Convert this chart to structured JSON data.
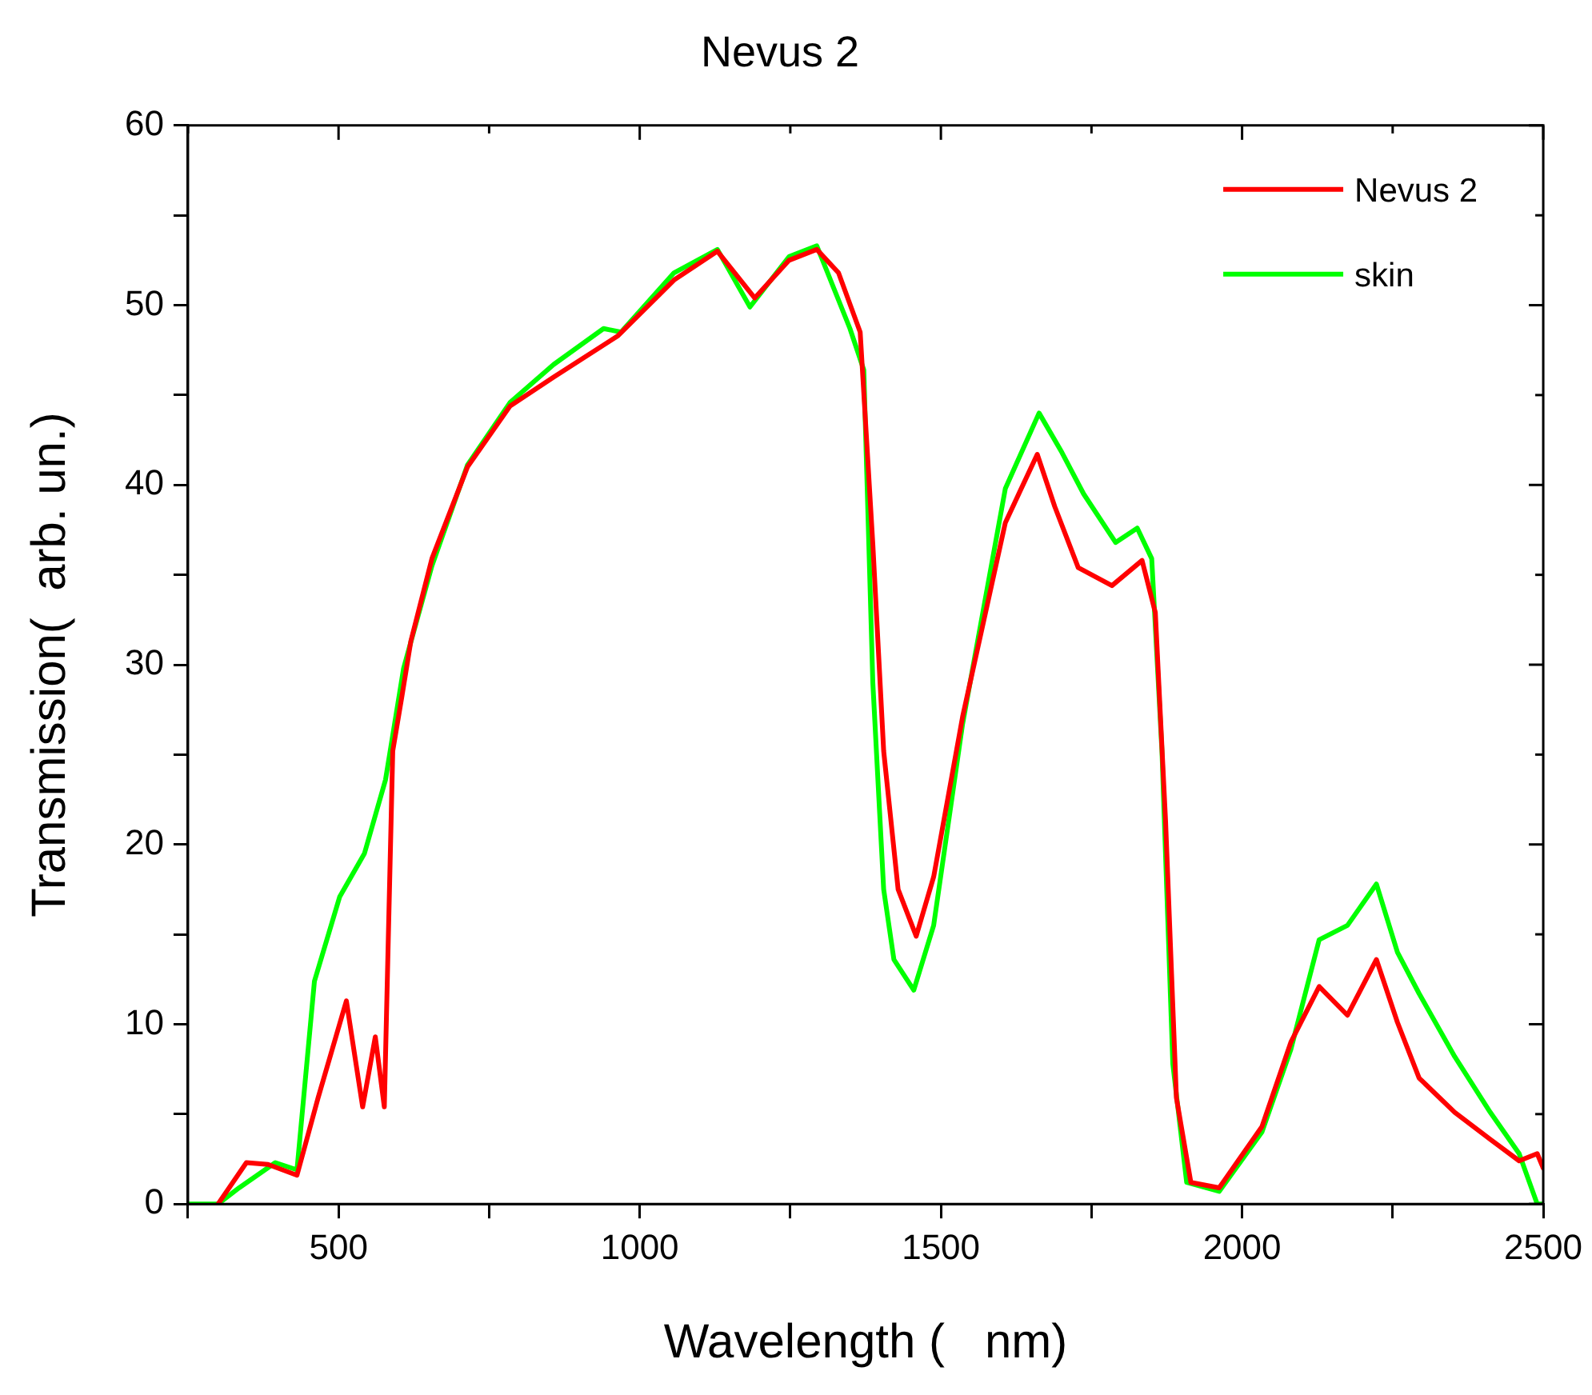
{
  "chart_data": {
    "type": "line",
    "title": "Nevus 2",
    "xlabel": "Wavelength (   nm)",
    "ylabel": "Transmission(  arb. un.)",
    "xlim": [
      250,
      2500
    ],
    "ylim": [
      0,
      60
    ],
    "xticks": [
      {
        "value": 250,
        "label": null
      },
      500,
      {
        "value": 750,
        "label": null
      },
      1000,
      {
        "value": 1250,
        "label": null
      },
      1500,
      {
        "value": 1750,
        "label": null
      },
      2000,
      {
        "value": 2250,
        "label": null
      },
      2500
    ],
    "yticks": [
      0,
      {
        "value": 5,
        "label": null
      },
      10,
      {
        "value": 15,
        "label": null
      },
      20,
      {
        "value": 25,
        "label": null
      },
      30,
      {
        "value": 35,
        "label": null
      },
      40,
      {
        "value": 45,
        "label": null
      },
      50,
      {
        "value": 55,
        "label": null
      },
      60
    ],
    "grid": false,
    "legend": "top right",
    "marker": "none",
    "line_style": "solid",
    "series": [
      {
        "name": "Nevus 2",
        "color": "#ff0000",
        "x": [
          300,
          347,
          383,
          431,
          466,
          513,
          540,
          561,
          576,
          590,
          605,
          620,
          655,
          714,
          785,
          857,
          964,
          1057,
          1129,
          1191,
          1248,
          1294,
          1330,
          1366,
          1387,
          1405,
          1429,
          1459,
          1488,
          1536,
          1607,
          1660,
          1689,
          1728,
          1784,
          1834,
          1856,
          1873,
          1891,
          1915,
          1962,
          2033,
          2081,
          2128,
          2175,
          2223,
          2258,
          2294,
          2353,
          2412,
          2460,
          2490,
          2500
        ],
        "values": [
          0,
          2.3,
          2.2,
          1.6,
          5.9,
          11.3,
          5.4,
          9.3,
          5.4,
          25.2,
          28.2,
          31.3,
          35.9,
          41,
          44.4,
          46,
          48.3,
          51.4,
          53,
          50.4,
          52.5,
          53.1,
          51.8,
          48.5,
          36.7,
          25.2,
          17.5,
          14.9,
          18.2,
          27.1,
          37.9,
          41.7,
          38.8,
          35.4,
          34.4,
          35.8,
          32.9,
          21.3,
          5.9,
          1.2,
          0.9,
          4.3,
          9,
          12.1,
          10.5,
          13.6,
          10.1,
          7,
          5.1,
          3.6,
          2.4,
          2.8,
          2
        ]
      },
      {
        "name": "skin",
        "color": "#00ff00",
        "x": [
          250,
          300,
          335,
          395,
          431,
          460,
          502,
          543,
          578,
          608,
          655,
          714,
          785,
          857,
          940,
          969,
          1057,
          1129,
          1183,
          1248,
          1294,
          1349,
          1372,
          1387,
          1405,
          1422,
          1455,
          1488,
          1536,
          1607,
          1663,
          1701,
          1737,
          1790,
          1826,
          1850,
          1867,
          1885,
          1908,
          1962,
          2033,
          2081,
          2128,
          2175,
          2223,
          2258,
          2294,
          2353,
          2412,
          2460,
          2490,
          2500
        ],
        "values": [
          0,
          0,
          0.9,
          2.3,
          1.9,
          12.4,
          17.1,
          19.5,
          23.6,
          29.8,
          35.5,
          41.1,
          44.6,
          46.7,
          48.7,
          48.5,
          51.8,
          53.1,
          49.9,
          52.7,
          53.3,
          48.7,
          46.4,
          29,
          17.5,
          13.6,
          11.9,
          15.5,
          26.7,
          39.8,
          44,
          41.8,
          39.5,
          36.8,
          37.6,
          35.9,
          25.2,
          7.8,
          1.2,
          0.7,
          4,
          8.6,
          14.7,
          15.5,
          17.8,
          14,
          11.7,
          8.2,
          5.1,
          2.8,
          0,
          0
        ]
      }
    ]
  }
}
